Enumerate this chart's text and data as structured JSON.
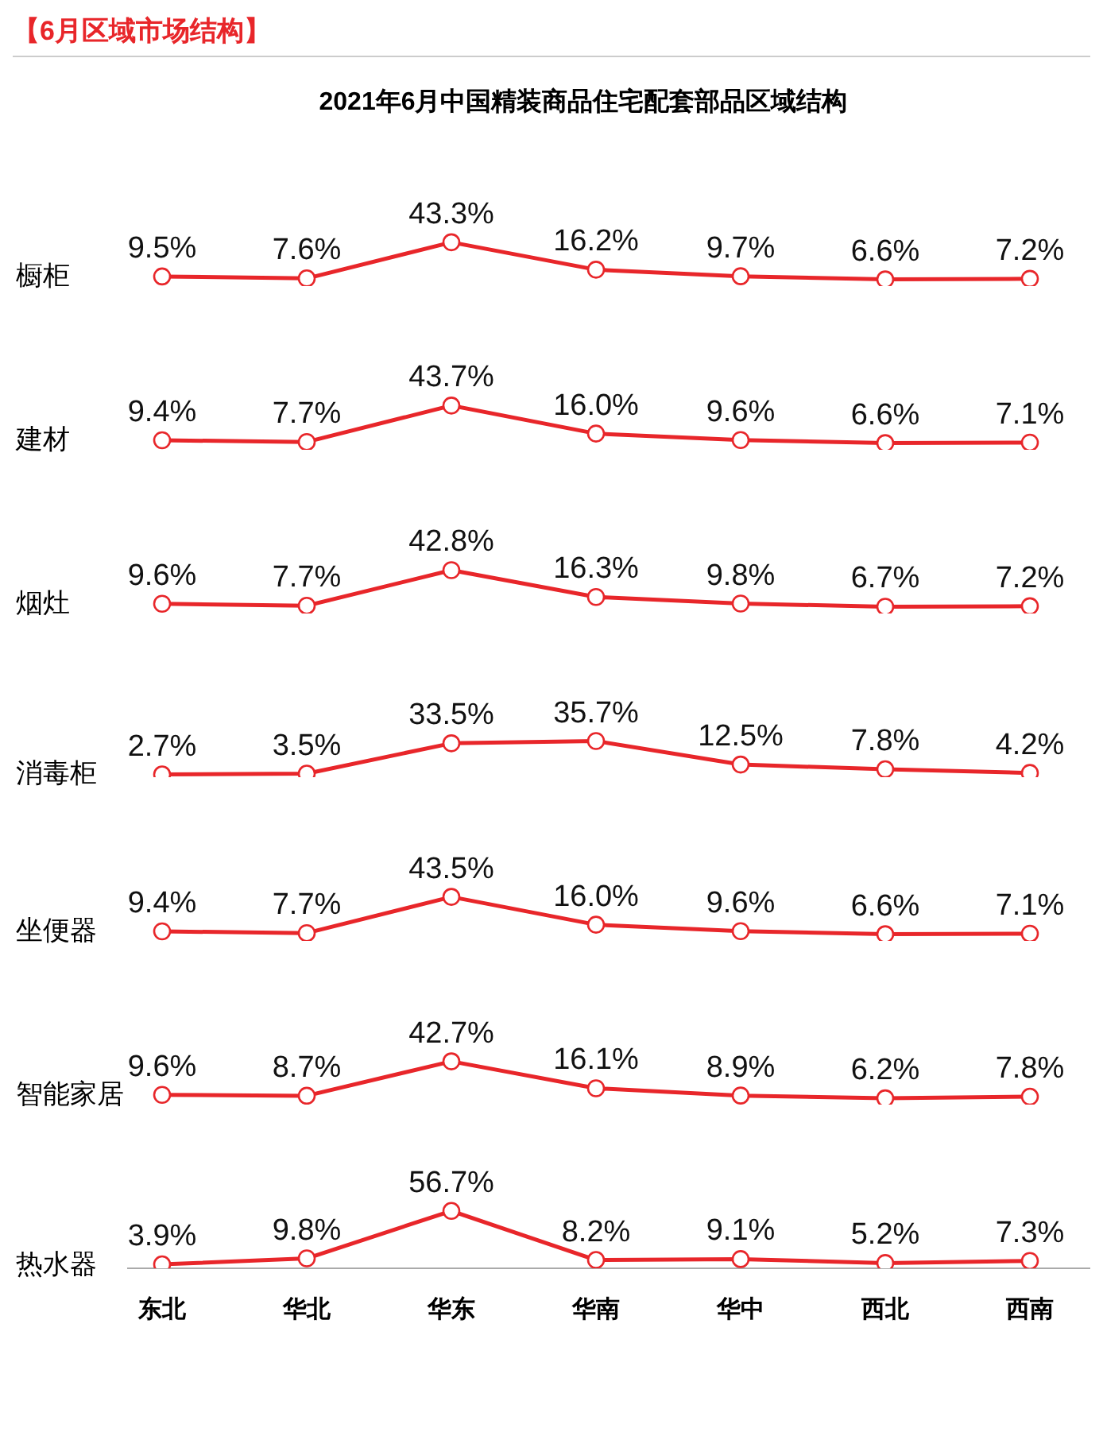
{
  "chart_data": [
    {
      "type": "line",
      "title": "2021年6月中国精装商品住宅配套部品区域结构",
      "annotations": [
        "【6月区域市场结构】"
      ],
      "ylabel": "橱柜",
      "marker": "circle",
      "tick_labels": false,
      "series": [
        {
          "color": "#e8262a",
          "values": [
            9.5,
            7.6,
            43.3,
            16.2,
            9.7,
            6.6,
            7.2
          ],
          "value_labels": [
            "9.5%",
            "7.6%",
            "43.3%",
            "16.2%",
            "9.7%",
            "6.6%",
            "7.2%"
          ]
        }
      ]
    },
    {
      "type": "line",
      "ylabel": "建材",
      "marker": "circle",
      "tick_labels": false,
      "series": [
        {
          "color": "#e8262a",
          "values": [
            9.4,
            7.7,
            43.7,
            16.0,
            9.6,
            6.6,
            7.1
          ],
          "value_labels": [
            "9.4%",
            "7.7%",
            "43.7%",
            "16.0%",
            "9.6%",
            "6.6%",
            "7.1%"
          ]
        }
      ]
    },
    {
      "type": "line",
      "ylabel": "烟灶",
      "marker": "circle",
      "tick_labels": false,
      "series": [
        {
          "color": "#e8262a",
          "values": [
            9.6,
            7.7,
            42.8,
            16.3,
            9.8,
            6.7,
            7.2
          ],
          "value_labels": [
            "9.6%",
            "7.7%",
            "42.8%",
            "16.3%",
            "9.8%",
            "6.7%",
            "7.2%"
          ]
        }
      ]
    },
    {
      "type": "line",
      "ylabel": "消毒柜",
      "marker": "circle",
      "tick_labels": false,
      "series": [
        {
          "color": "#e8262a",
          "values": [
            2.7,
            3.5,
            33.5,
            35.7,
            12.5,
            7.8,
            4.2
          ],
          "value_labels": [
            "2.7%",
            "3.5%",
            "33.5%",
            "35.7%",
            "12.5%",
            "7.8%",
            "4.2%"
          ]
        }
      ]
    },
    {
      "type": "line",
      "ylabel": "坐便器",
      "marker": "circle",
      "tick_labels": false,
      "series": [
        {
          "color": "#e8262a",
          "values": [
            9.4,
            7.7,
            43.5,
            16.0,
            9.6,
            6.6,
            7.1
          ],
          "value_labels": [
            "9.4%",
            "7.7%",
            "43.5%",
            "16.0%",
            "9.6%",
            "6.6%",
            "7.1%"
          ]
        }
      ]
    },
    {
      "type": "line",
      "ylabel": "智能家居",
      "marker": "circle",
      "tick_labels": false,
      "series": [
        {
          "color": "#e8262a",
          "values": [
            9.6,
            8.7,
            42.7,
            16.1,
            8.9,
            6.2,
            7.8
          ],
          "value_labels": [
            "9.6%",
            "8.7%",
            "42.7%",
            "16.1%",
            "8.9%",
            "6.2%",
            "7.8%"
          ]
        }
      ]
    },
    {
      "type": "line",
      "ylabel": "热水器",
      "categories": [
        "东北",
        "华北",
        "华东",
        "华南",
        "华中",
        "西北",
        "西南"
      ],
      "marker": "circle",
      "tick_labels": "x",
      "series": [
        {
          "color": "#e8262a",
          "values": [
            3.9,
            9.8,
            56.7,
            8.2,
            9.1,
            5.2,
            7.3
          ],
          "value_labels": [
            "3.9%",
            "9.8%",
            "56.7%",
            "8.2%",
            "9.1%",
            "5.2%",
            "7.3%"
          ]
        }
      ]
    }
  ]
}
